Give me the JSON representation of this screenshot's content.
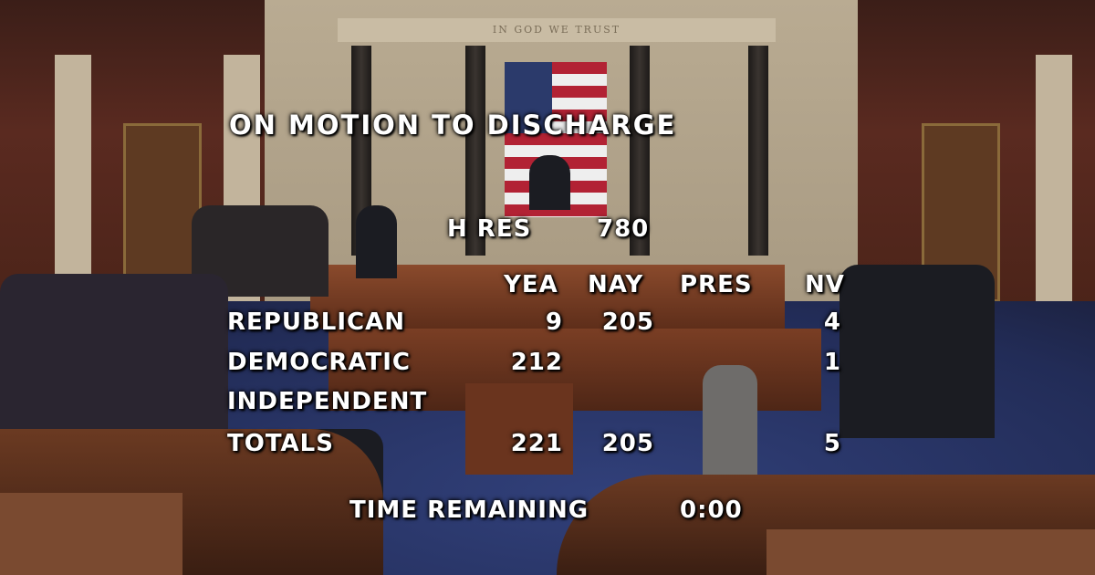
{
  "scene": {
    "frieze_text": "IN GOD WE TRUST"
  },
  "overlay": {
    "title": "ON MOTION TO DISCHARGE",
    "measure_label": "H RES",
    "measure_number": "780",
    "columns": [
      "YEA",
      "NAY",
      "PRES",
      "NV"
    ],
    "rows": [
      {
        "party": "REPUBLICAN",
        "yea": "9",
        "nay": "205",
        "pres": "",
        "nv": "4"
      },
      {
        "party": "DEMOCRATIC",
        "yea": "212",
        "nay": "",
        "pres": "",
        "nv": "1"
      },
      {
        "party": "INDEPENDENT",
        "yea": "",
        "nay": "",
        "pres": "",
        "nv": ""
      },
      {
        "party": "TOTALS",
        "yea": "221",
        "nay": "205",
        "pres": "",
        "nv": "5"
      }
    ],
    "time_label": "TIME REMAINING",
    "time_value": "0:00"
  }
}
